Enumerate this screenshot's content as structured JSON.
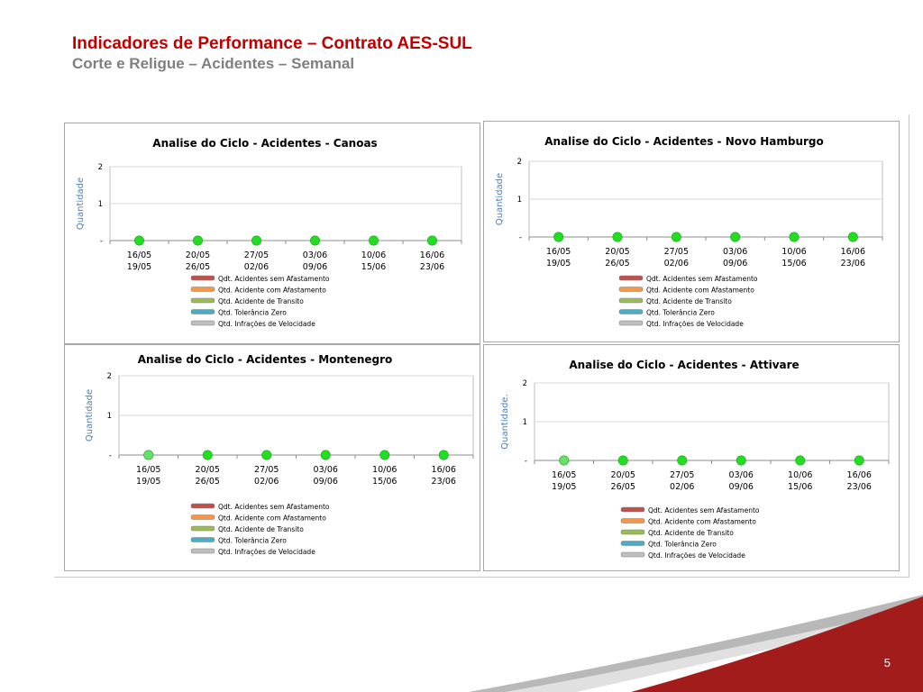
{
  "page": {
    "title": "Indicadores de Performance – Contrato AES-SUL",
    "subtitle": "Corte e Religue – Acidentes – Semanal",
    "page_number": "5"
  },
  "colors": {
    "title": "#c00000",
    "subtitle": "#7f7f7f",
    "accent_red": "#a31c1c",
    "marker": "#22dd22",
    "marker_light": "#66e066",
    "axis_label": "#4f81bd"
  },
  "chart_data": [
    {
      "type": "line",
      "title": "Analise do Ciclo - Acidentes - Canoas",
      "ylabel": "Quantidade",
      "yticks": [
        "-",
        "1",
        "2"
      ],
      "ylim": [
        0,
        2
      ],
      "categories": [
        "16/05 19/05",
        "20/05 26/05",
        "27/05 02/06",
        "03/06 09/06",
        "10/06 15/06",
        "16/06 23/06"
      ],
      "category_lines": [
        [
          "16/05",
          "19/05"
        ],
        [
          "20/05",
          "26/05"
        ],
        [
          "27/05",
          "02/06"
        ],
        [
          "03/06",
          "09/06"
        ],
        [
          "10/06",
          "15/06"
        ],
        [
          "16/06",
          "23/06"
        ]
      ],
      "values": [
        0,
        0,
        0,
        0,
        0,
        0
      ],
      "grid": true,
      "legend_position": "bottom",
      "legend": [
        {
          "label": "Qdt. Acidentes sem Afastamento",
          "color": "#c0504d"
        },
        {
          "label": "Qtd. Acidente com Afastamento",
          "color": "#f79646"
        },
        {
          "label": "Qtd. Acidente de Transito",
          "color": "#9bbb59"
        },
        {
          "label": "Qtd. Tolerância Zero",
          "color": "#4bacc6"
        },
        {
          "label": "Qtd. Infrações de Velocidade",
          "color": "#bfbfbf"
        }
      ]
    },
    {
      "type": "line",
      "title": "Analise do Ciclo - Acidentes - Novo Hamburgo",
      "ylabel": "Quantidade",
      "yticks": [
        "-",
        "1",
        "2"
      ],
      "ylim": [
        0,
        2
      ],
      "categories": [
        "16/05 19/05",
        "20/05 26/05",
        "27/05 02/06",
        "03/06 09/06",
        "10/06 15/06",
        "16/06 23/06"
      ],
      "category_lines": [
        [
          "16/05",
          "19/05"
        ],
        [
          "20/05",
          "26/05"
        ],
        [
          "27/05",
          "02/06"
        ],
        [
          "03/06",
          "09/06"
        ],
        [
          "10/06",
          "15/06"
        ],
        [
          "16/06",
          "23/06"
        ]
      ],
      "values": [
        0,
        0,
        0,
        0,
        0,
        0
      ],
      "grid": true,
      "legend_position": "bottom",
      "legend": [
        {
          "label": "Qdt. Acidentes sem Afastamento",
          "color": "#c0504d"
        },
        {
          "label": "Qtd. Acidente com Afastamento",
          "color": "#f79646"
        },
        {
          "label": "Qtd. Acidente de Transito",
          "color": "#9bbb59"
        },
        {
          "label": "Qtd. Tolerância Zero",
          "color": "#4bacc6"
        },
        {
          "label": "Qtd. Infrações de Velocidade",
          "color": "#bfbfbf"
        }
      ]
    },
    {
      "type": "line",
      "title": "Analise do Ciclo - Acidentes - Montenegro",
      "ylabel": "Quantidade",
      "yticks": [
        "-",
        "1",
        "2"
      ],
      "ylim": [
        0,
        2
      ],
      "categories": [
        "16/05 19/05",
        "20/05 26/05",
        "27/05 02/06",
        "03/06 09/06",
        "10/06 15/06",
        "16/06 23/06"
      ],
      "category_lines": [
        [
          "16/05",
          "19/05"
        ],
        [
          "20/05",
          "26/05"
        ],
        [
          "27/05",
          "02/06"
        ],
        [
          "03/06",
          "09/06"
        ],
        [
          "10/06",
          "15/06"
        ],
        [
          "16/06",
          "23/06"
        ]
      ],
      "values": [
        0,
        0,
        0,
        0,
        0,
        0
      ],
      "grid": true,
      "legend_position": "bottom",
      "legend": [
        {
          "label": "Qdt. Acidentes sem Afastamento",
          "color": "#c0504d"
        },
        {
          "label": "Qtd. Acidente com Afastamento",
          "color": "#f79646"
        },
        {
          "label": "Qtd. Acidente de Transito",
          "color": "#9bbb59"
        },
        {
          "label": "Qtd. Tolerância Zero",
          "color": "#4bacc6"
        },
        {
          "label": "Qtd. Infrações de Velocidade",
          "color": "#bfbfbf"
        }
      ]
    },
    {
      "type": "line",
      "title": "Analise do Ciclo - Acidentes - Attivare",
      "ylabel": "Quantidade.",
      "yticks": [
        "-",
        "1",
        "2"
      ],
      "ylim": [
        0,
        2
      ],
      "categories": [
        "16/05 19/05",
        "20/05 26/05",
        "27/05 02/06",
        "03/06 09/06",
        "10/06 15/06",
        "16/06 23/06"
      ],
      "category_lines": [
        [
          "16/05",
          "19/05"
        ],
        [
          "20/05",
          "26/05"
        ],
        [
          "27/05",
          "02/06"
        ],
        [
          "03/06",
          "09/06"
        ],
        [
          "10/06",
          "15/06"
        ],
        [
          "16/06",
          "23/06"
        ]
      ],
      "values": [
        0,
        0,
        0,
        0,
        0,
        0
      ],
      "grid": true,
      "legend_position": "bottom",
      "legend": [
        {
          "label": "Qdt. Acidentes sem Afastamento",
          "color": "#c0504d"
        },
        {
          "label": "Qtd. Acidente com Afastamento",
          "color": "#f79646"
        },
        {
          "label": "Qtd. Acidente de Transito",
          "color": "#9bbb59"
        },
        {
          "label": "Qtd. Tolerância Zero",
          "color": "#4bacc6"
        },
        {
          "label": "Qtd. Infrações de Velocidade",
          "color": "#bfbfbf"
        }
      ]
    }
  ]
}
